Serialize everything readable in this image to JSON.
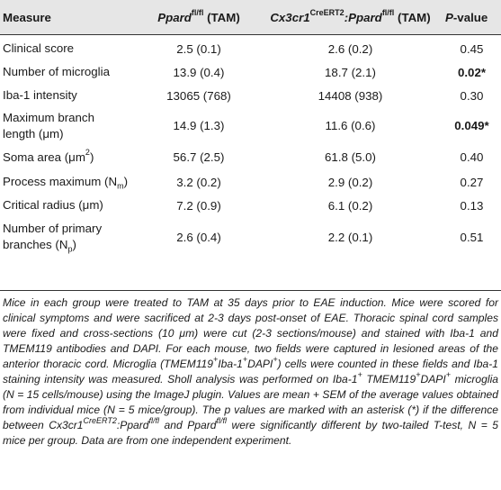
{
  "header": {
    "measure": "Measure",
    "col1_gene": "Ppard",
    "col1_sup": "fl/fl",
    "col1_suffix": "(TAM)",
    "col2_gene": "Cx3cr1",
    "col2_sup": "CreERT2",
    "col2_sep": ":",
    "col2_gene2": "Ppard",
    "col2_sup2": "fl/fl",
    "col2_suffix": "(TAM)",
    "col3_p": "P",
    "col3_rest": "-value"
  },
  "rows": [
    {
      "measure": "Clinical score",
      "v1": "2.5 (0.1)",
      "v2": "2.6 (0.2)",
      "p": "0.45"
    },
    {
      "measure": "Number of microglia",
      "v1": "13.9 (0.4)",
      "v2": "18.7 (2.1)",
      "p": "0.02*"
    },
    {
      "measure": "Iba-1 intensity",
      "v1": "13065 (768)",
      "v2": "14408 (938)",
      "p": "0.30"
    },
    {
      "measure_line1": "Maximum branch",
      "measure_line2": "length (",
      "mu": "μ",
      "unit_rest": "m)",
      "v1": "14.9 (1.3)",
      "v2": "11.6 (0.6)",
      "p": "0.049*"
    },
    {
      "measure": "Soma area (",
      "mu": "μ",
      "unit_rest": "m",
      "sup": "2",
      "close": ")",
      "v1": "56.7 (2.5)",
      "v2": "61.8 (5.0)",
      "p": "0.40"
    },
    {
      "measure": "Process maximum (N",
      "sub": "m",
      "close": ")",
      "v1": "3.2 (0.2)",
      "v2": "2.9 (0.2)",
      "p": "0.27"
    },
    {
      "measure": "Critical radius (",
      "mu": "μ",
      "unit_rest": "m)",
      "v1": "7.2 (0.9)",
      "v2": "6.1 (0.2)",
      "p": "0.13"
    },
    {
      "measure_line1": "Number of primary",
      "measure_line2": "branches (N",
      "sub": "p",
      "close": ")",
      "v1": "2.6 (0.4)",
      "v2": "2.2 (0.1)",
      "p": "0.51"
    }
  ],
  "caption": {
    "s1": "Mice in each group were treated to TAM at 35 days prior to EAE induction. Mice were scored for clinical symptoms and were sacrificed at 2-3 days post-onset of EAE. Thoracic spinal cord samples were fixed and cross-sections (10 ",
    "mu": "μ",
    "s2": "m) were cut (2-3 sections/mouse) and stained with Iba-1 and TMEM119 antibodies and DAPI. For each mouse, two fields were captured in lesioned areas of the anterior thoracic cord. Microglia (TMEM119",
    "plus": "+",
    "s3": "Iba-1",
    "s4": "DAPI",
    "s5": ") cells were counted in these fields and Iba-1 staining intensity was measured. Sholl analysis was performed on Iba-1",
    "s6": " TMEM119",
    "s7": "DAPI",
    "s8": " microglia (N = 15 cells/mouse) using the ImageJ plugin. Values are mean + SEM of the average values obtained from individual mice (N = 5 mice/group). The p values are marked with an asterisk (*) if the difference between Cx3cr1",
    "cre": "CreERT2",
    "s9": ":Ppard",
    "flfl": "fl/fl",
    "s10": " and Ppard",
    "s11": " were significantly different by two-tailed T-test, N = 5 mice per group. Data are from one independent experiment."
  }
}
